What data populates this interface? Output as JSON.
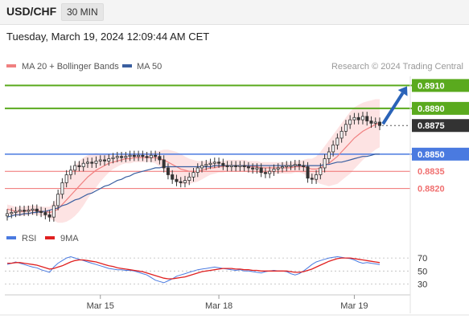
{
  "header": {
    "symbol": "USD/CHF",
    "timeframe": "30 MIN"
  },
  "datetime": "Tuesday, March 19, 2024 12:09:44 AM CET",
  "legend": {
    "ma20_label": "MA 20 + Bollinger Bands",
    "ma50_label": "MA 50",
    "copyright": "Research © 2024 Trading Central",
    "ma20_color": "#f08080",
    "ma50_color": "#3a5fa0"
  },
  "colors": {
    "resistance": "#5aaa1e",
    "support_major": "#4a7ae0",
    "support_minor": "#f07070",
    "current": "#333333",
    "arrow": "#2a63b8",
    "candle": "#333333",
    "band_fill": "#fbd0d0",
    "rsi": "#4a7ae0",
    "rsi_ma": "#e02020"
  },
  "chart_data": [
    {
      "type": "candlestick",
      "title": "USD/CHF 30 MIN",
      "ylim": [
        0.8786,
        0.8918
      ],
      "x_ticks": [
        {
          "index": 22,
          "label": "Mar 15"
        },
        {
          "index": 50,
          "label": "Mar 18"
        },
        {
          "index": 82,
          "label": "Mar 19"
        }
      ],
      "levels": [
        {
          "value": 0.891,
          "label": "0.8910",
          "kind": "resistance"
        },
        {
          "value": 0.889,
          "label": "0.8890",
          "kind": "resistance"
        },
        {
          "value": 0.8875,
          "label": "0.8875",
          "kind": "current"
        },
        {
          "value": 0.885,
          "label": "0.8850",
          "kind": "support_major"
        },
        {
          "value": 0.8835,
          "label": "0.8835",
          "kind": "support_minor"
        },
        {
          "value": 0.882,
          "label": "0.8820",
          "kind": "support_minor"
        }
      ],
      "close": [
        0.8798,
        0.8799,
        0.88,
        0.8801,
        0.88,
        0.8801,
        0.8802,
        0.88,
        0.8799,
        0.8797,
        0.8795,
        0.8805,
        0.8815,
        0.8825,
        0.8832,
        0.8836,
        0.884,
        0.8839,
        0.8842,
        0.8843,
        0.8842,
        0.8844,
        0.8845,
        0.8844,
        0.8846,
        0.8847,
        0.8848,
        0.8847,
        0.8848,
        0.8849,
        0.8848,
        0.8849,
        0.8848,
        0.8847,
        0.8849,
        0.8848,
        0.8845,
        0.8838,
        0.8832,
        0.8828,
        0.8826,
        0.8825,
        0.8827,
        0.883,
        0.8834,
        0.8838,
        0.884,
        0.8841,
        0.8842,
        0.8843,
        0.8842,
        0.884,
        0.8839,
        0.884,
        0.8839,
        0.884,
        0.8839,
        0.8838,
        0.8837,
        0.8838,
        0.8834,
        0.8833,
        0.8835,
        0.8837,
        0.8838,
        0.8839,
        0.884,
        0.884,
        0.8841,
        0.884,
        0.8839,
        0.8829,
        0.8828,
        0.8832,
        0.8838,
        0.8846,
        0.8852,
        0.8858,
        0.8864,
        0.887,
        0.8876,
        0.888,
        0.8882,
        0.888,
        0.8883,
        0.8879,
        0.8877,
        0.8878,
        0.8875
      ],
      "ma20": [
        0.8802,
        0.8801,
        0.88,
        0.88,
        0.88,
        0.8801,
        0.8801,
        0.8801,
        0.88,
        0.88,
        0.8799,
        0.88,
        0.8802,
        0.8806,
        0.881,
        0.8814,
        0.8818,
        0.8822,
        0.8826,
        0.883,
        0.8833,
        0.8836,
        0.8838,
        0.884,
        0.8842,
        0.8843,
        0.8844,
        0.8845,
        0.8846,
        0.8846,
        0.8847,
        0.8847,
        0.8847,
        0.8847,
        0.8847,
        0.8847,
        0.8846,
        0.8845,
        0.8843,
        0.8841,
        0.8839,
        0.8837,
        0.8836,
        0.8835,
        0.8835,
        0.8835,
        0.8836,
        0.8837,
        0.8838,
        0.8838,
        0.8839,
        0.8839,
        0.884,
        0.884,
        0.884,
        0.884,
        0.884,
        0.8839,
        0.8839,
        0.8839,
        0.8838,
        0.8838,
        0.8838,
        0.8838,
        0.8838,
        0.8838,
        0.8838,
        0.8838,
        0.8839,
        0.8839,
        0.8839,
        0.8838,
        0.8837,
        0.8837,
        0.8838,
        0.884,
        0.8842,
        0.8845,
        0.8848,
        0.8852,
        0.8856,
        0.886,
        0.8864,
        0.8867,
        0.887,
        0.8872,
        0.8874,
        0.8876,
        0.8877
      ],
      "band_width": [
        0.0004,
        0.0004,
        0.0004,
        0.0004,
        0.0004,
        0.0004,
        0.0004,
        0.0004,
        0.0004,
        0.0004,
        0.0005,
        0.0008,
        0.0012,
        0.0016,
        0.0019,
        0.0021,
        0.0022,
        0.0022,
        0.0021,
        0.0019,
        0.0017,
        0.0015,
        0.0012,
        0.001,
        0.0008,
        0.0006,
        0.0005,
        0.0004,
        0.0004,
        0.0004,
        0.0004,
        0.0004,
        0.0004,
        0.0004,
        0.0004,
        0.0005,
        0.0007,
        0.0009,
        0.0011,
        0.0012,
        0.0013,
        0.0013,
        0.0012,
        0.0011,
        0.001,
        0.0009,
        0.0008,
        0.0007,
        0.0006,
        0.0005,
        0.0005,
        0.0005,
        0.0005,
        0.0005,
        0.0005,
        0.0005,
        0.0005,
        0.0005,
        0.0005,
        0.0005,
        0.0005,
        0.0005,
        0.0005,
        0.0005,
        0.0005,
        0.0005,
        0.0005,
        0.0005,
        0.0005,
        0.0005,
        0.0006,
        0.0008,
        0.0009,
        0.0011,
        0.0014,
        0.0017,
        0.002,
        0.0022,
        0.0024,
        0.0025,
        0.0026,
        0.0027,
        0.0027,
        0.0026,
        0.0025,
        0.0024,
        0.0023,
        0.0022,
        0.0021
      ],
      "ma50": [
        0.8795,
        0.8796,
        0.8797,
        0.8797,
        0.8798,
        0.8798,
        0.8799,
        0.8799,
        0.88,
        0.88,
        0.8801,
        0.8802,
        0.8803,
        0.8805,
        0.8806,
        0.8808,
        0.881,
        0.8811,
        0.8813,
        0.8815,
        0.8816,
        0.8818,
        0.882,
        0.8822,
        0.8823,
        0.8825,
        0.8827,
        0.8828,
        0.883,
        0.8831,
        0.8833,
        0.8834,
        0.8835,
        0.8836,
        0.8837,
        0.8838,
        0.8838,
        0.8839,
        0.8839,
        0.8839,
        0.8839,
        0.8839,
        0.8839,
        0.8839,
        0.8839,
        0.8839,
        0.8839,
        0.8839,
        0.8839,
        0.884,
        0.884,
        0.884,
        0.884,
        0.884,
        0.884,
        0.884,
        0.884,
        0.884,
        0.884,
        0.884,
        0.884,
        0.884,
        0.884,
        0.884,
        0.884,
        0.884,
        0.884,
        0.884,
        0.884,
        0.884,
        0.884,
        0.884,
        0.884,
        0.884,
        0.884,
        0.8841,
        0.8841,
        0.8842,
        0.8843,
        0.8843,
        0.8844,
        0.8845,
        0.8846,
        0.8847,
        0.8848,
        0.8848,
        0.8849,
        0.885,
        0.885
      ]
    },
    {
      "type": "line",
      "title": "RSI",
      "ylim": [
        22,
        80
      ],
      "y_ticks": [
        70,
        50,
        30
      ],
      "series": [
        {
          "name": "RSI",
          "values": [
            60,
            62,
            64,
            62,
            60,
            58,
            56,
            55,
            52,
            50,
            48,
            56,
            62,
            66,
            70,
            72,
            70,
            68,
            66,
            64,
            62,
            60,
            58,
            56,
            54,
            53,
            52,
            52,
            51,
            51,
            50,
            48,
            46,
            44,
            40,
            36,
            34,
            32,
            35,
            38,
            42,
            44,
            46,
            48,
            50,
            52,
            53,
            54,
            55,
            56,
            55,
            54,
            53,
            52,
            51,
            52,
            50,
            50,
            49,
            48,
            47,
            49,
            50,
            51,
            50,
            50,
            49,
            46,
            44,
            46,
            50,
            55,
            60,
            64,
            66,
            68,
            70,
            71,
            72,
            71,
            70,
            69,
            67,
            64,
            62,
            63,
            62,
            61,
            60
          ]
        },
        {
          "name": "9MA",
          "values": [
            62,
            62,
            63,
            63,
            62,
            61,
            60,
            59,
            57,
            55,
            53,
            54,
            56,
            58,
            61,
            64,
            66,
            67,
            67,
            66,
            65,
            64,
            62,
            60,
            58,
            57,
            55,
            54,
            53,
            52,
            51,
            50,
            49,
            47,
            45,
            43,
            41,
            39,
            38,
            38,
            39,
            40,
            41,
            43,
            45,
            47,
            49,
            50,
            51,
            52,
            53,
            54,
            54,
            54,
            53,
            53,
            52,
            52,
            51,
            51,
            50,
            50,
            50,
            50,
            50,
            50,
            50,
            49,
            48,
            48,
            49,
            51,
            53,
            56,
            59,
            62,
            65,
            67,
            69,
            70,
            70,
            70,
            69,
            68,
            67,
            66,
            65,
            64,
            63
          ]
        }
      ]
    }
  ]
}
